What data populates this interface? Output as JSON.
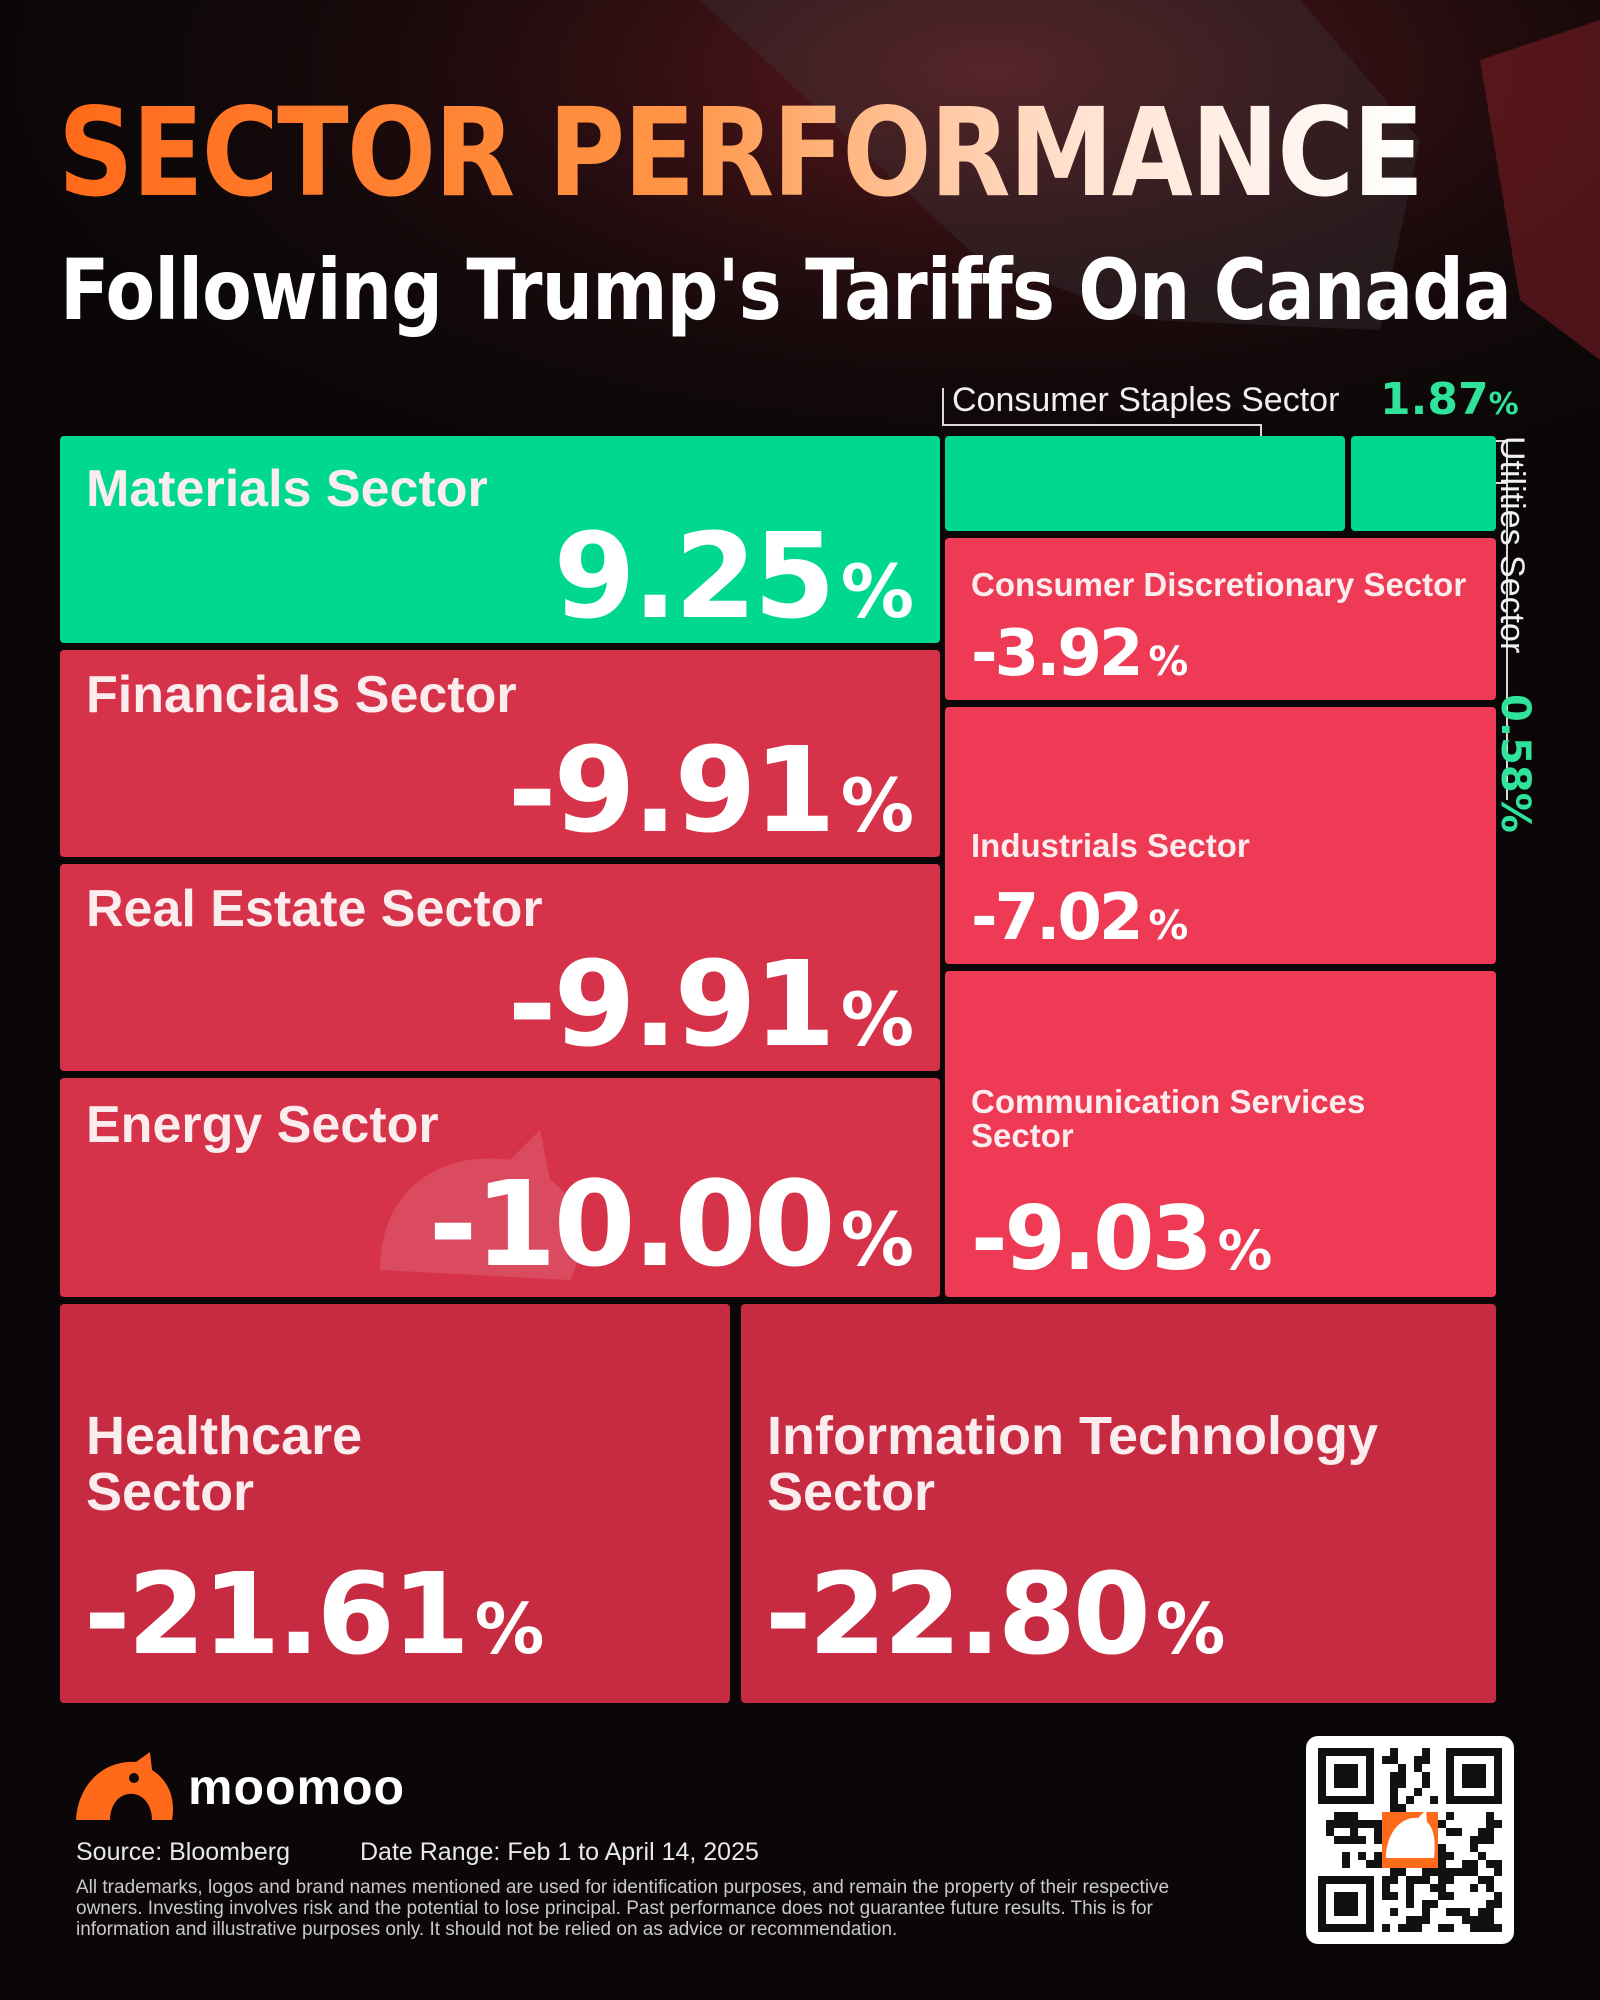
{
  "header": {
    "title": "SECTOR PERFORMANCE",
    "subtitle": "Following Trump's Tariffs On Canada"
  },
  "chart_data": {
    "type": "treemap",
    "title": "SECTOR PERFORMANCE",
    "subtitle": "Following Trump's Tariffs On Canada",
    "unit": "%",
    "sectors": [
      {
        "name": "Materials Sector",
        "value": 9.25,
        "display": "9.25"
      },
      {
        "name": "Financials Sector",
        "value": -9.91,
        "display": "-9.91"
      },
      {
        "name": "Real Estate Sector",
        "value": -9.91,
        "display": "-9.91"
      },
      {
        "name": "Energy Sector",
        "value": -10.0,
        "display": "-10.00"
      },
      {
        "name": "Consumer Staples Sector",
        "value": 1.87,
        "display": "1.87"
      },
      {
        "name": "Utilities Sector",
        "value": 0.58,
        "display": "0.58"
      },
      {
        "name": "Consumer Discretionary Sector",
        "value": -3.92,
        "display": "-3.92"
      },
      {
        "name": "Industrials Sector",
        "value": -7.02,
        "display": "-7.02"
      },
      {
        "name": "Communication Services Sector",
        "value": -9.03,
        "display": "-9.03"
      },
      {
        "name": "Healthcare Sector",
        "value": -21.61,
        "display": "-21.61"
      },
      {
        "name": "Information Technology Sector",
        "value": -22.8,
        "display": "-22.80"
      }
    ],
    "colors": {
      "positive": "#00d890",
      "negative_light": "#ee3a55",
      "negative": "#d6324a",
      "negative_dark": "#c62b42",
      "callout_value": "#2fe39b"
    }
  },
  "callouts": {
    "staples_label": "Consumer Staples Sector",
    "staples_value": "1.87",
    "utilities_label": "Utilities Sector",
    "utilities_value": "0.58",
    "pct": "%"
  },
  "brand": {
    "name": "moomoo",
    "logo_icon": "moomoo-bull-logo",
    "qr_icon": "qr-code"
  },
  "footer": {
    "source": "Source: Bloomberg",
    "date_range": "Date Range: Feb 1 to April 14, 2025",
    "disclaimer": "All trademarks, logos and brand names mentioned are used for identification purposes, and remain the property of their respective owners. Investing involves risk and the potential to lose principal. Past performance does not guarantee future results. This is for information and illustrative purposes only. It should not be relied on as advice or recommendation."
  }
}
